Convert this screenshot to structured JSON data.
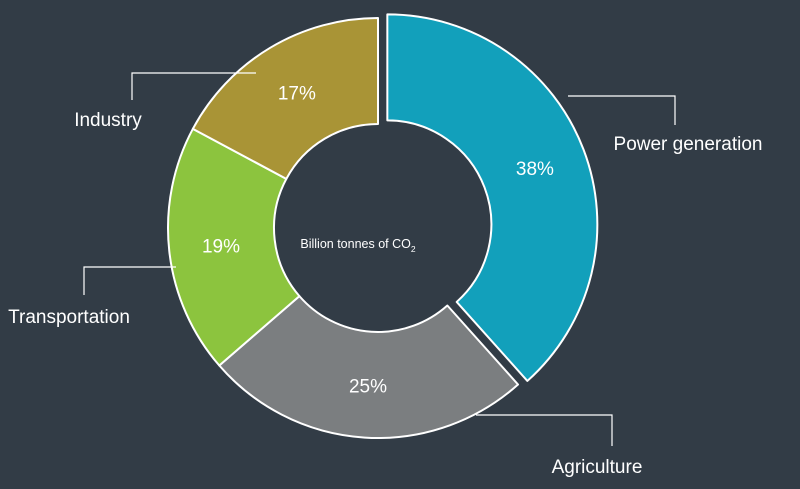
{
  "chart_data": {
    "type": "pie",
    "subtype": "donut",
    "center_label": {
      "text": "Billion tonnes of CO",
      "subscript": "2"
    },
    "start_angle_deg": 0,
    "direction": "clockwise",
    "slices": [
      {
        "label": "Power generation",
        "value": 38,
        "display": "38%",
        "color": "#12a0bb",
        "exploded": true
      },
      {
        "label": "Agriculture",
        "value": 25,
        "display": "25%",
        "color": "#7b7e80",
        "exploded": false
      },
      {
        "label": "Transportation",
        "value": 19,
        "display": "19%",
        "color": "#8cc43e",
        "exploded": false
      },
      {
        "label": "Industry",
        "value": 17,
        "display": "17%",
        "color": "#a99436",
        "exploded": false
      }
    ],
    "colors": {
      "background": "#323c46",
      "slice_border": "#ffffff",
      "text": "#ffffff",
      "leader_line": "#ffffff"
    }
  }
}
